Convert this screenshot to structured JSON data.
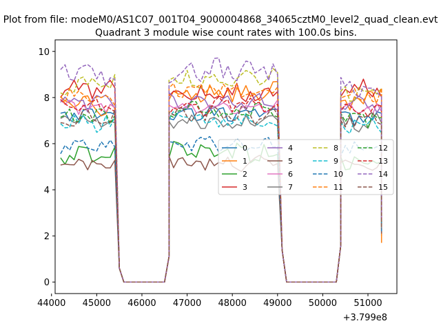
{
  "figure": {
    "suptitle": "Plot from file: modeM0/AS1C07_001T04_9000004868_34065cztM0_level2_quad_clean.evt",
    "title": "Quadrant 3 module wise count rates with 100.0s bins.",
    "offset_text": "+3.799e8"
  },
  "chart_data": {
    "type": "line",
    "x_offset": 379900000,
    "xlim": [
      44080,
      51640
    ],
    "ylim": [
      -0.5,
      10.5
    ],
    "x_ticks": [
      44000,
      45000,
      46000,
      47000,
      48000,
      49000,
      50000,
      51000
    ],
    "x_tick_labels": [
      "44000",
      "45000",
      "46000",
      "47000",
      "48000",
      "49000",
      "50000",
      "51000"
    ],
    "y_ticks": [
      0,
      2,
      4,
      6,
      8,
      10
    ],
    "y_tick_labels": [
      "0",
      "2",
      "4",
      "6",
      "8",
      "10"
    ],
    "grid": false,
    "legend_position": "center-right",
    "legend_columns": 4,
    "segments": [
      {
        "start": 44200,
        "end": 45400
      },
      {
        "start": 46600,
        "end": 49000
      },
      {
        "start": 50400,
        "end": 51300
      }
    ],
    "gaps": [
      {
        "x": [
          45500,
          45600,
          46500,
          46600
        ],
        "y": [
          0.6,
          0,
          0,
          1.1
        ]
      },
      {
        "x": [
          49100,
          49200,
          50300,
          50400
        ],
        "y": [
          1.4,
          0,
          0,
          1.6
        ]
      }
    ],
    "ends": [
      2.0,
      1.7,
      2.2,
      2.4,
      2.3,
      2.1,
      2.6,
      2.3,
      2.9,
      2.5,
      2.2,
      3.0,
      2.4,
      2.6,
      2.8,
      2.3
    ],
    "series": [
      {
        "name": "0",
        "color": "#1f77b4",
        "dash": "solid",
        "seg_means": [
          7.3,
          7.3,
          7.1
        ],
        "seg_amp": 0.25
      },
      {
        "name": "1",
        "color": "#ff7f0e",
        "dash": "solid",
        "seg_means": [
          7.7,
          8.2,
          7.9
        ],
        "seg_amp": 0.35
      },
      {
        "name": "2",
        "color": "#2ca02c",
        "dash": "solid",
        "seg_means": [
          5.5,
          5.6,
          5.3
        ],
        "seg_amp": 0.35
      },
      {
        "name": "3",
        "color": "#d62728",
        "dash": "solid",
        "seg_means": [
          8.4,
          8.2,
          8.4
        ],
        "seg_amp": 0.3
      },
      {
        "name": "4",
        "color": "#9467bd",
        "dash": "solid",
        "seg_means": [
          7.8,
          7.8,
          7.7
        ],
        "seg_amp": 0.3
      },
      {
        "name": "5",
        "color": "#8c564b",
        "dash": "solid",
        "seg_means": [
          5.2,
          5.2,
          5.0
        ],
        "seg_amp": 0.3
      },
      {
        "name": "6",
        "color": "#e377c2",
        "dash": "solid",
        "seg_means": [
          7.6,
          7.6,
          7.5
        ],
        "seg_amp": 0.3
      },
      {
        "name": "7",
        "color": "#7f7f7f",
        "dash": "solid",
        "seg_means": [
          7.0,
          7.0,
          6.9
        ],
        "seg_amp": 0.3
      },
      {
        "name": "8",
        "color": "#bcbd22",
        "dash": "dashed",
        "seg_means": [
          8.5,
          8.8,
          8.3
        ],
        "seg_amp": 0.35
      },
      {
        "name": "9",
        "color": "#17becf",
        "dash": "dashed",
        "seg_means": [
          6.9,
          7.0,
          6.8
        ],
        "seg_amp": 0.3
      },
      {
        "name": "10",
        "color": "#1f77b4",
        "dash": "dashed",
        "seg_means": [
          5.9,
          6.0,
          5.8
        ],
        "seg_amp": 0.3
      },
      {
        "name": "11",
        "color": "#ff7f0e",
        "dash": "dashed",
        "seg_means": [
          8.0,
          8.4,
          8.1
        ],
        "seg_amp": 0.3
      },
      {
        "name": "12",
        "color": "#2ca02c",
        "dash": "dashed",
        "seg_means": [
          7.2,
          7.4,
          7.1
        ],
        "seg_amp": 0.3
      },
      {
        "name": "13",
        "color": "#d62728",
        "dash": "dashed",
        "seg_means": [
          7.5,
          7.6,
          7.4
        ],
        "seg_amp": 0.3
      },
      {
        "name": "14",
        "color": "#9467bd",
        "dash": "dashed",
        "seg_means": [
          9.0,
          9.2,
          8.4
        ],
        "seg_amp": 0.4
      },
      {
        "name": "15",
        "color": "#8c564b",
        "dash": "dashed",
        "seg_means": [
          7.1,
          7.2,
          7.0
        ],
        "seg_amp": 0.3
      }
    ]
  }
}
